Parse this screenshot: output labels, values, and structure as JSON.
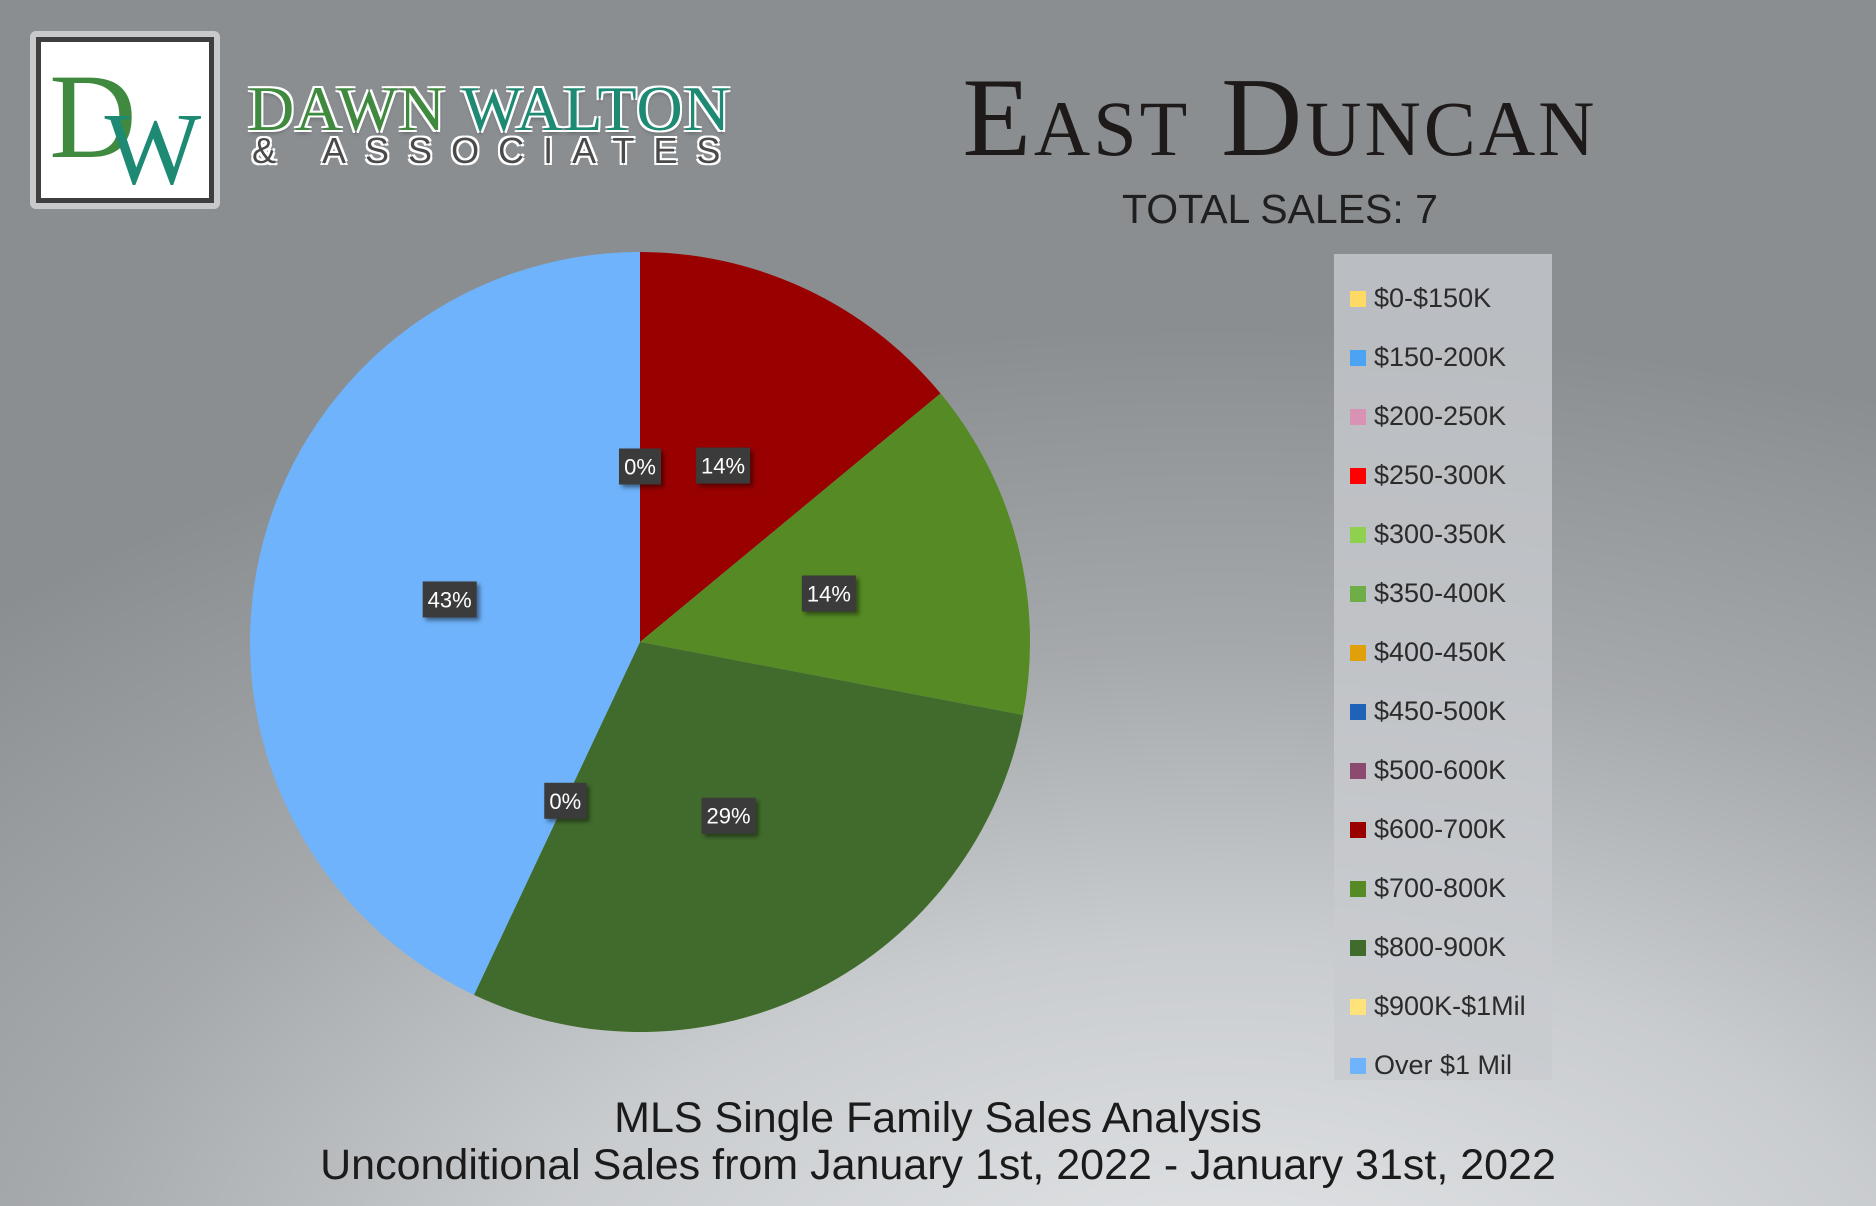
{
  "brand": {
    "logo_mark": "DW",
    "name_part1": "DAWN ",
    "name_part2": "WALTON",
    "tagline": "& ASSOCIATES"
  },
  "header": {
    "title": "East Duncan",
    "subtitle": "TOTAL SALES: 7"
  },
  "footer": {
    "line1": "MLS Single Family Sales Analysis",
    "line2": "Unconditional Sales from January 1st, 2022 - January 31st, 2022"
  },
  "chart_data": {
    "type": "pie",
    "title": "",
    "legend_position": "right",
    "slices": [
      {
        "label": "$0-$150K",
        "value": 0,
        "color": "#ffd966"
      },
      {
        "label": "$150-200K",
        "value": 0,
        "color": "#4da3f3"
      },
      {
        "label": "$200-250K",
        "value": 0,
        "color": "#d892b4"
      },
      {
        "label": "$250-300K",
        "value": 0,
        "color": "#ff0000"
      },
      {
        "label": "$300-350K",
        "value": 0,
        "color": "#8fd14f"
      },
      {
        "label": "$350-400K",
        "value": 0,
        "color": "#6fad47"
      },
      {
        "label": "$400-450K",
        "value": 0,
        "color": "#e0a00a"
      },
      {
        "label": "$450-500K",
        "value": 0,
        "color": "#1f63b8"
      },
      {
        "label": "$500-600K",
        "value": 0,
        "color": "#8c4b6e"
      },
      {
        "label": "$600-700K",
        "value": 14,
        "color": "#990000"
      },
      {
        "label": "$700-800K",
        "value": 14,
        "color": "#558a24"
      },
      {
        "label": "$800-900K",
        "value": 29,
        "color": "#416b2c"
      },
      {
        "label": "$900K-$1Mil",
        "value": 0,
        "color": "#ffe27a"
      },
      {
        "label": "Over $1 Mil",
        "value": 43,
        "color": "#6eb3fb"
      }
    ],
    "data_labels": [
      {
        "text": "0%",
        "slice": "$0-$150K"
      },
      {
        "text": "14%",
        "slice": "$600-700K"
      },
      {
        "text": "14%",
        "slice": "$700-800K"
      },
      {
        "text": "29%",
        "slice": "$800-900K"
      },
      {
        "text": "0%",
        "slice": "$900K-$1Mil"
      },
      {
        "text": "43%",
        "slice": "Over $1 Mil"
      }
    ]
  }
}
